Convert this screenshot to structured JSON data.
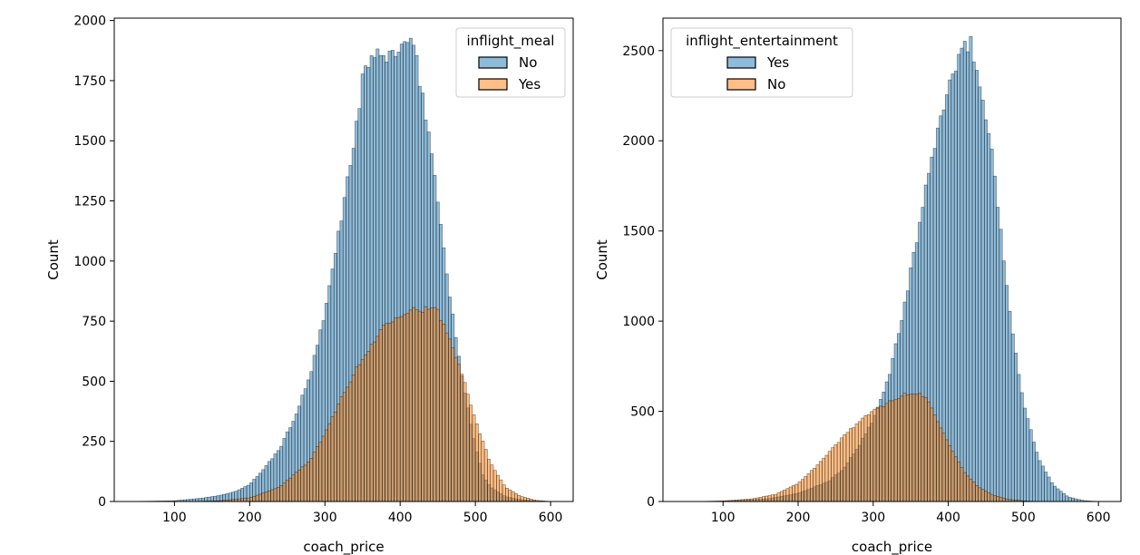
{
  "chart_data": [
    {
      "type": "histogram",
      "xlabel": "coach_price",
      "ylabel": "Count",
      "xlim": [
        20,
        630
      ],
      "ylim": [
        0,
        2010
      ],
      "xticks": [
        100,
        200,
        300,
        400,
        500,
        600
      ],
      "yticks": [
        0,
        250,
        500,
        750,
        1000,
        1250,
        1500,
        1750,
        2000
      ],
      "bin_start": 40,
      "bin_width": 4,
      "legend": {
        "title": "inflight_meal",
        "placement": "top-right"
      },
      "series": [
        {
          "name": "No",
          "color": "#1f77b4",
          "profile": [
            [
              40,
              0
            ],
            [
              100,
              3
            ],
            [
              140,
              15
            ],
            [
              160,
              25
            ],
            [
              180,
              40
            ],
            [
              200,
              70
            ],
            [
              220,
              140
            ],
            [
              240,
              220
            ],
            [
              260,
              350
            ],
            [
              280,
              520
            ],
            [
              300,
              780
            ],
            [
              320,
              1150
            ],
            [
              340,
              1520
            ],
            [
              350,
              1750
            ],
            [
              360,
              1850
            ],
            [
              380,
              1850
            ],
            [
              400,
              1880
            ],
            [
              410,
              1920
            ],
            [
              420,
              1860
            ],
            [
              440,
              1500
            ],
            [
              460,
              1000
            ],
            [
              480,
              550
            ],
            [
              500,
              230
            ],
            [
              510,
              110
            ],
            [
              520,
              60
            ],
            [
              540,
              20
            ],
            [
              560,
              8
            ],
            [
              580,
              2
            ],
            [
              600,
              0
            ]
          ]
        },
        {
          "name": "Yes",
          "color": "#ff7f0e",
          "profile": [
            [
              120,
              0
            ],
            [
              160,
              3
            ],
            [
              200,
              15
            ],
            [
              240,
              60
            ],
            [
              280,
              170
            ],
            [
              300,
              280
            ],
            [
              320,
              420
            ],
            [
              340,
              540
            ],
            [
              360,
              640
            ],
            [
              380,
              740
            ],
            [
              400,
              780
            ],
            [
              420,
              800
            ],
            [
              440,
              800
            ],
            [
              450,
              790
            ],
            [
              460,
              720
            ],
            [
              480,
              560
            ],
            [
              500,
              340
            ],
            [
              520,
              160
            ],
            [
              540,
              60
            ],
            [
              560,
              22
            ],
            [
              580,
              5
            ],
            [
              600,
              0
            ]
          ]
        }
      ]
    },
    {
      "type": "histogram",
      "xlabel": "coach_price",
      "ylabel": "Count",
      "xlim": [
        20,
        630
      ],
      "ylim": [
        0,
        2680
      ],
      "xticks": [
        100,
        200,
        300,
        400,
        500,
        600
      ],
      "yticks": [
        0,
        500,
        1000,
        1500,
        2000,
        2500
      ],
      "bin_start": 40,
      "bin_width": 4,
      "legend": {
        "title": "inflight_entertainment",
        "placement": "top-left"
      },
      "series": [
        {
          "name": "Yes",
          "color": "#1f77b4",
          "profile": [
            [
              80,
              0
            ],
            [
              120,
              5
            ],
            [
              160,
              15
            ],
            [
              200,
              45
            ],
            [
              240,
              110
            ],
            [
              260,
              180
            ],
            [
              280,
              300
            ],
            [
              300,
              450
            ],
            [
              320,
              680
            ],
            [
              340,
              1050
            ],
            [
              360,
              1500
            ],
            [
              380,
              1950
            ],
            [
              400,
              2300
            ],
            [
              420,
              2500
            ],
            [
              430,
              2550
            ],
            [
              440,
              2350
            ],
            [
              460,
              1900
            ],
            [
              480,
              1100
            ],
            [
              500,
              550
            ],
            [
              520,
              240
            ],
            [
              540,
              90
            ],
            [
              560,
              25
            ],
            [
              580,
              5
            ],
            [
              600,
              0
            ]
          ]
        },
        {
          "name": "No",
          "color": "#ff7f0e",
          "profile": [
            [
              60,
              0
            ],
            [
              100,
              3
            ],
            [
              140,
              15
            ],
            [
              170,
              40
            ],
            [
              200,
              100
            ],
            [
              230,
              220
            ],
            [
              260,
              360
            ],
            [
              280,
              440
            ],
            [
              300,
              500
            ],
            [
              320,
              550
            ],
            [
              340,
              590
            ],
            [
              360,
              600
            ],
            [
              370,
              580
            ],
            [
              380,
              500
            ],
            [
              400,
              330
            ],
            [
              420,
              170
            ],
            [
              440,
              80
            ],
            [
              460,
              35
            ],
            [
              480,
              12
            ],
            [
              500,
              4
            ],
            [
              520,
              0
            ]
          ]
        }
      ]
    }
  ]
}
